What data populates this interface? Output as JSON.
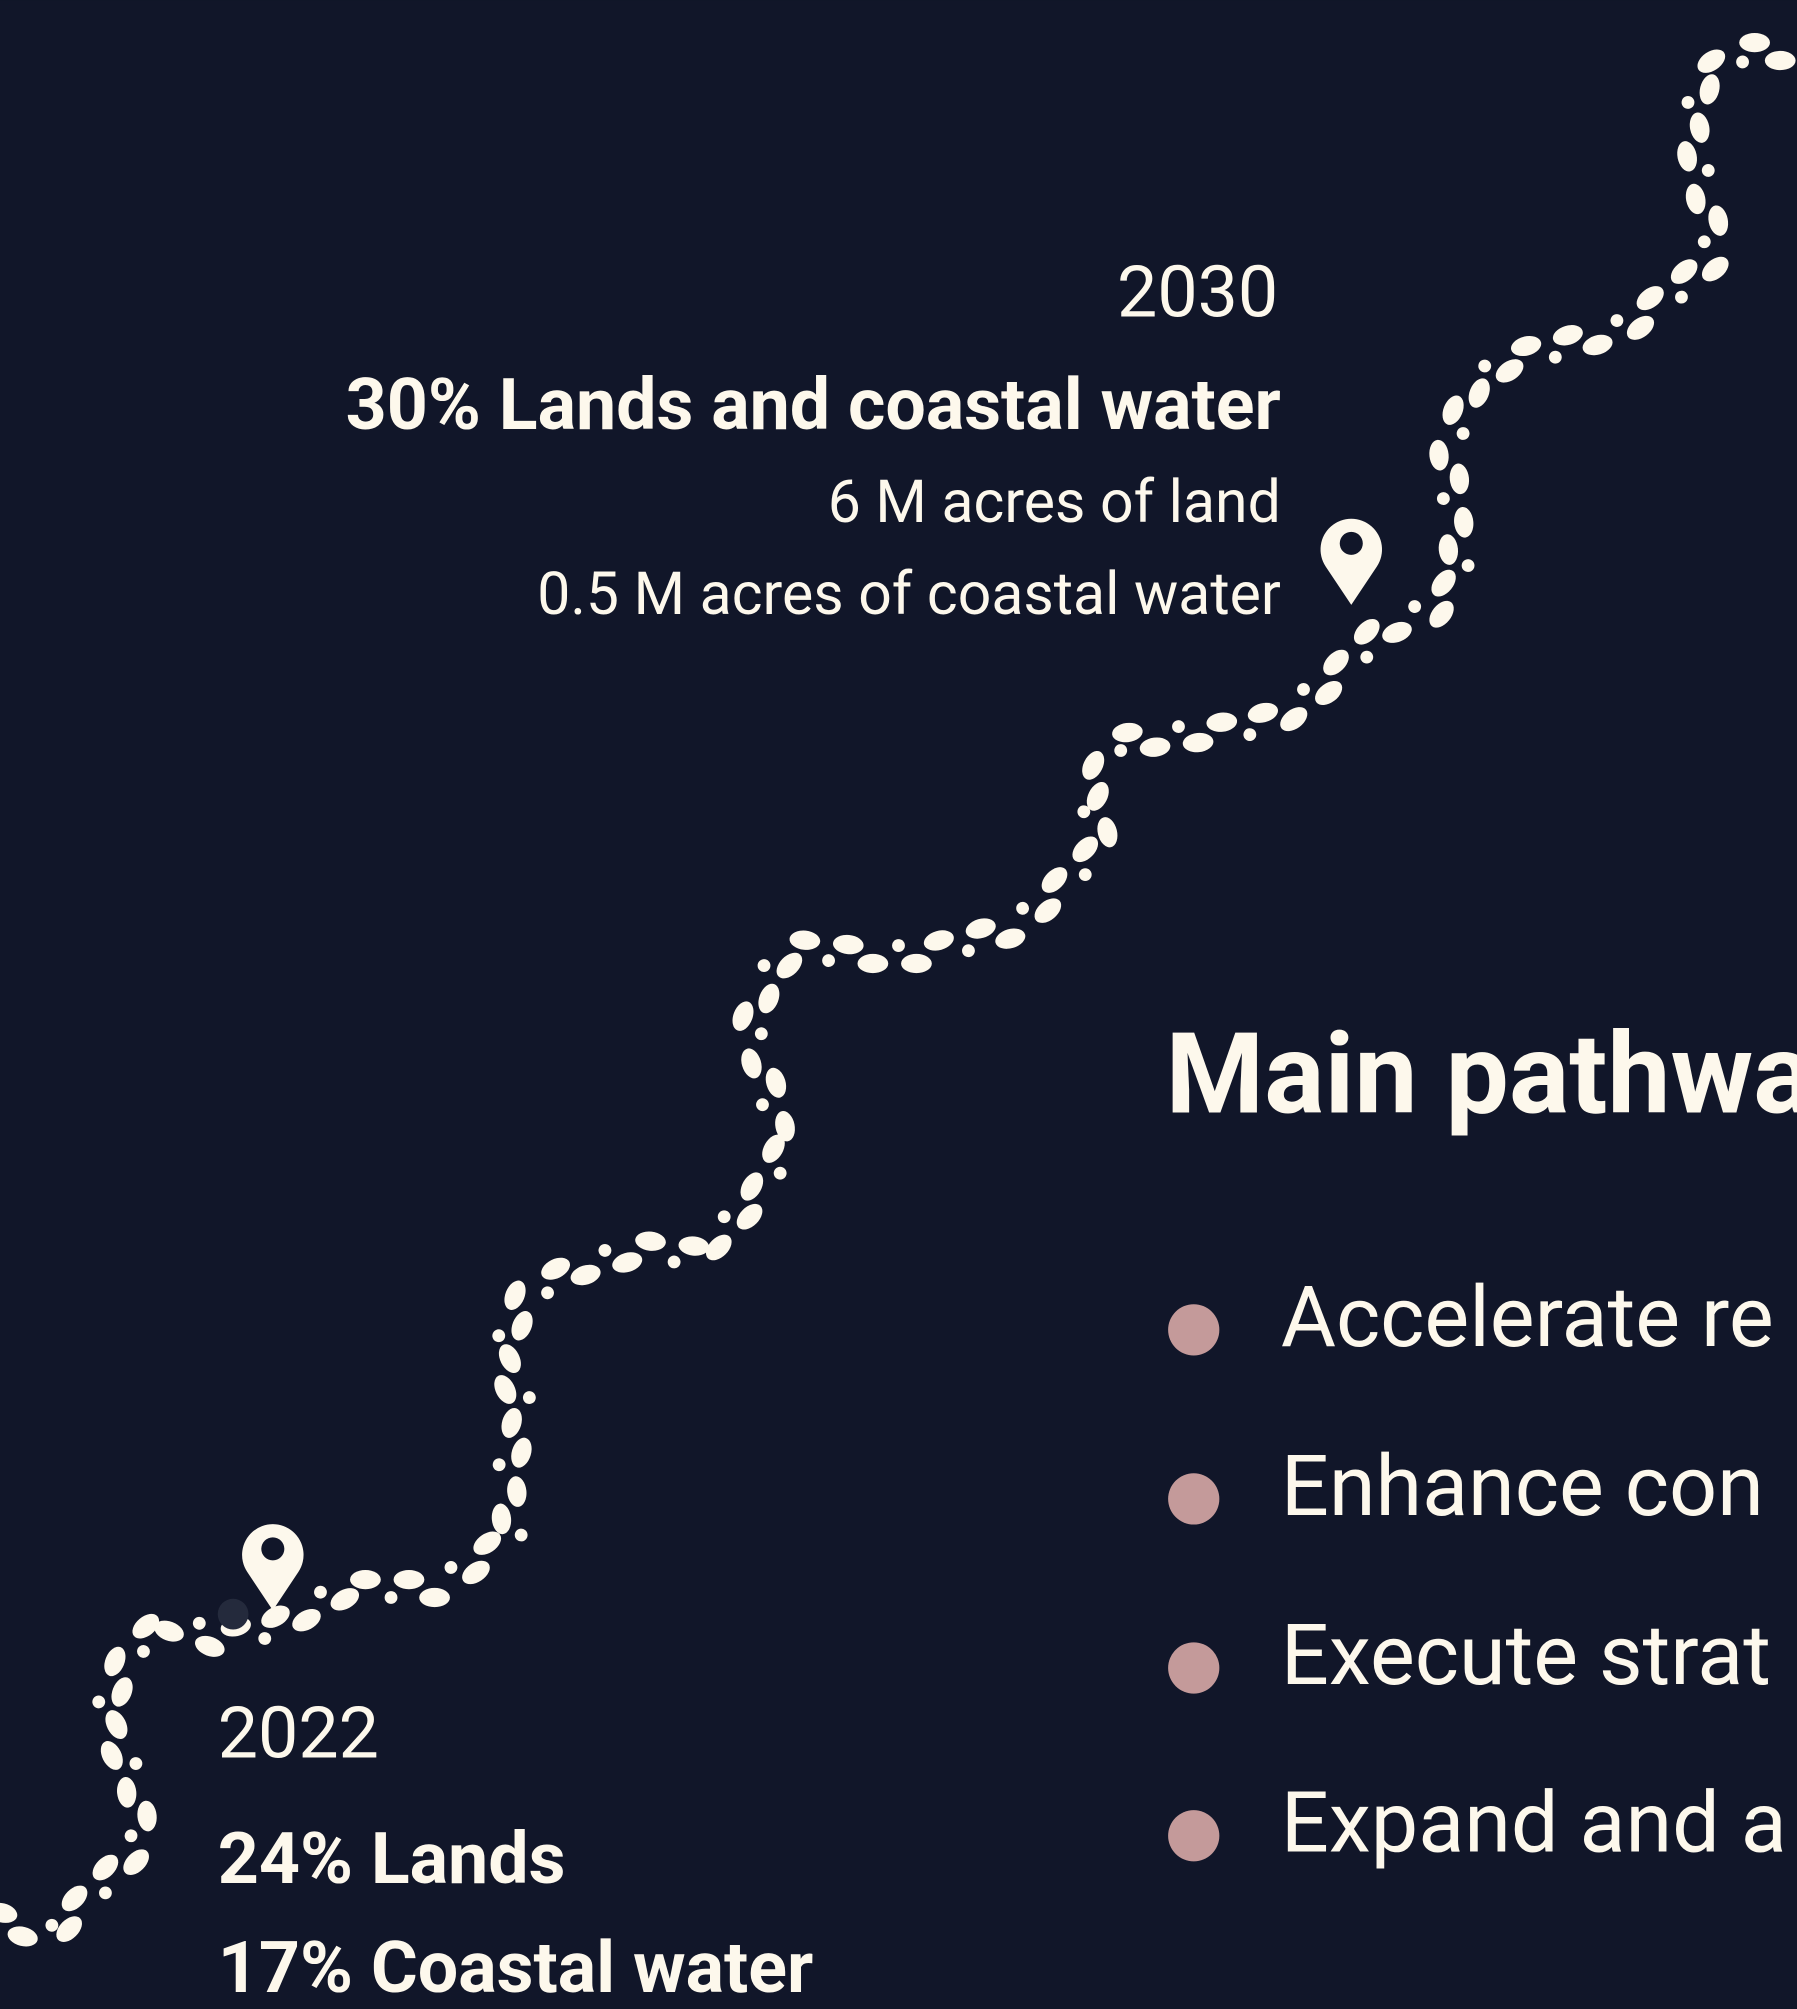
{
  "milestones": [
    {
      "year": "2030",
      "headline": "30% Lands and coastal water",
      "details": [
        "6 M acres of land",
        "0.5 M acres of coastal water"
      ]
    },
    {
      "year": "2022",
      "headlines": [
        "24% Lands",
        "17% Coastal water"
      ]
    }
  ],
  "pathways": {
    "title": "Main pathwa",
    "items": [
      "Accelerate re",
      "Enhance con",
      "Execute strat",
      "Expand and a"
    ]
  }
}
